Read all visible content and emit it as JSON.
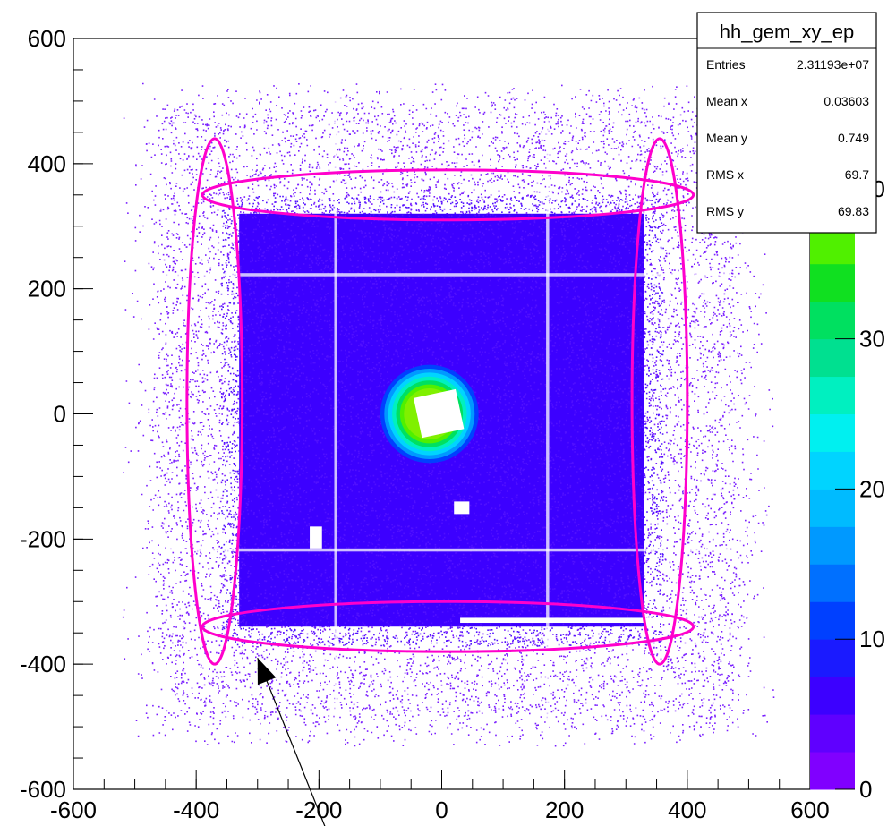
{
  "chart_data": {
    "type": "heatmap",
    "title": "",
    "xlabel": "",
    "ylabel": "",
    "xlim": [
      -600,
      600
    ],
    "ylim": [
      -600,
      600
    ],
    "zlim": [
      0,
      50
    ],
    "x_ticks": [
      -600,
      -400,
      -200,
      0,
      200,
      400,
      600
    ],
    "y_ticks": [
      -600,
      -400,
      -200,
      0,
      200,
      400,
      600
    ],
    "x_tick_labels": [
      "-600",
      "-400",
      "-200",
      "0",
      "200",
      "400",
      "600"
    ],
    "y_tick_labels": [
      "-600",
      "-400",
      "-200",
      "0",
      "200",
      "400",
      "600"
    ],
    "z_ticks": [
      0,
      10,
      20,
      30,
      40
    ],
    "z_tick_labels": [
      "0",
      "10",
      "20",
      "30",
      "40"
    ],
    "palette": [
      "#8000ff",
      "#5f00ff",
      "#3c00ff",
      "#1a1aff",
      "#0040ff",
      "#0070ff",
      "#0099ff",
      "#00bbff",
      "#00d4ff",
      "#00f0f0",
      "#00f0c0",
      "#00e090",
      "#00e060",
      "#10e020",
      "#50f000",
      "#80f000",
      "#b0f000",
      "#d0f000",
      "#f0f000",
      "#ffff00"
    ],
    "regions": [
      {
        "shape": "square",
        "x": [
          -450,
          470
        ],
        "y": [
          -480,
          480
        ],
        "density": "medium"
      },
      {
        "shape": "square",
        "x": [
          -330,
          330
        ],
        "y": [
          -340,
          320
        ],
        "density": "high"
      },
      {
        "shape": "ring",
        "center": [
          -20,
          0
        ],
        "radius": 80,
        "peak_z": 48
      }
    ],
    "empty_regions": [
      {
        "x": [
          -40,
          30
        ],
        "y": [
          -35,
          30
        ]
      },
      {
        "x": [
          -215,
          -195
        ],
        "y": [
          -215,
          -180
        ]
      },
      {
        "x": [
          20,
          45
        ],
        "y": [
          -160,
          -140
        ]
      },
      {
        "x": [
          30,
          380
        ],
        "y": [
          -334,
          -326
        ]
      }
    ],
    "overlay_ellipses": [
      {
        "center": [
          10,
          350
        ],
        "rx": 400,
        "ry": 40,
        "color": "#ff00cc"
      },
      {
        "center": [
          10,
          -340
        ],
        "rx": 400,
        "ry": 40,
        "color": "#ff00cc"
      },
      {
        "center": [
          -370,
          20
        ],
        "rx": 45,
        "ry": 420,
        "color": "#ff00cc"
      },
      {
        "center": [
          355,
          20
        ],
        "rx": 45,
        "ry": 420,
        "color": "#ff00cc"
      }
    ],
    "arrow": {
      "from": [
        -190,
        -660
      ],
      "to": [
        -300,
        -390
      ]
    },
    "stats": {
      "name": "hh_gem_xy_ep",
      "rows": [
        {
          "label": "Entries",
          "value": "2.31193e+07"
        },
        {
          "label": "Mean x",
          "value": "0.03603"
        },
        {
          "label": "Mean y",
          "value": "0.749"
        },
        {
          "label": "RMS x",
          "value": "69.7"
        },
        {
          "label": "RMS y",
          "value": "69.83"
        }
      ]
    }
  }
}
